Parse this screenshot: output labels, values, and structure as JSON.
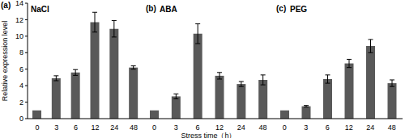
{
  "chart_data": [
    {
      "type": "bar",
      "title": "NaCl",
      "annotation": "(a)",
      "y_label": "Relative expression level",
      "categories": [
        "0",
        "3",
        "6",
        "12",
        "24",
        "48"
      ],
      "values": [
        1,
        4.9,
        5.6,
        11.7,
        10.9,
        6.2
      ],
      "errors": [
        0,
        0.3,
        0.35,
        1.2,
        1.0,
        0.2
      ],
      "color": "#595959",
      "ylim": [
        0,
        14
      ],
      "yticks": [
        0,
        2,
        4,
        6,
        8,
        10,
        12,
        14
      ]
    },
    {
      "type": "bar",
      "title": "ABA",
      "annotation": "(b)",
      "x_label": "Stress time（h）",
      "categories": [
        "0",
        "3",
        "6",
        "12",
        "24",
        "48"
      ],
      "values": [
        1,
        2.7,
        10.3,
        5.2,
        4.2,
        4.7
      ],
      "errors": [
        0,
        0.3,
        1.2,
        0.4,
        0.3,
        0.6
      ],
      "color": "#595959",
      "ylim": [
        0,
        14
      ],
      "yticks": [
        0,
        2,
        4,
        6,
        8,
        10,
        12,
        14
      ],
      "tick_labels": "x"
    },
    {
      "type": "bar",
      "title": "PEG",
      "annotation": "(c)",
      "categories": [
        "0",
        "3",
        "6",
        "12",
        "24",
        "48"
      ],
      "values": [
        1,
        1.5,
        4.8,
        6.7,
        8.8,
        4.3
      ],
      "errors": [
        0,
        0.1,
        0.5,
        0.5,
        0.8,
        0.4
      ],
      "color": "#595959",
      "ylim": [
        0,
        14
      ],
      "yticks": [
        0,
        2,
        4,
        6,
        8,
        10,
        12,
        14
      ],
      "tick_labels": "x"
    }
  ]
}
